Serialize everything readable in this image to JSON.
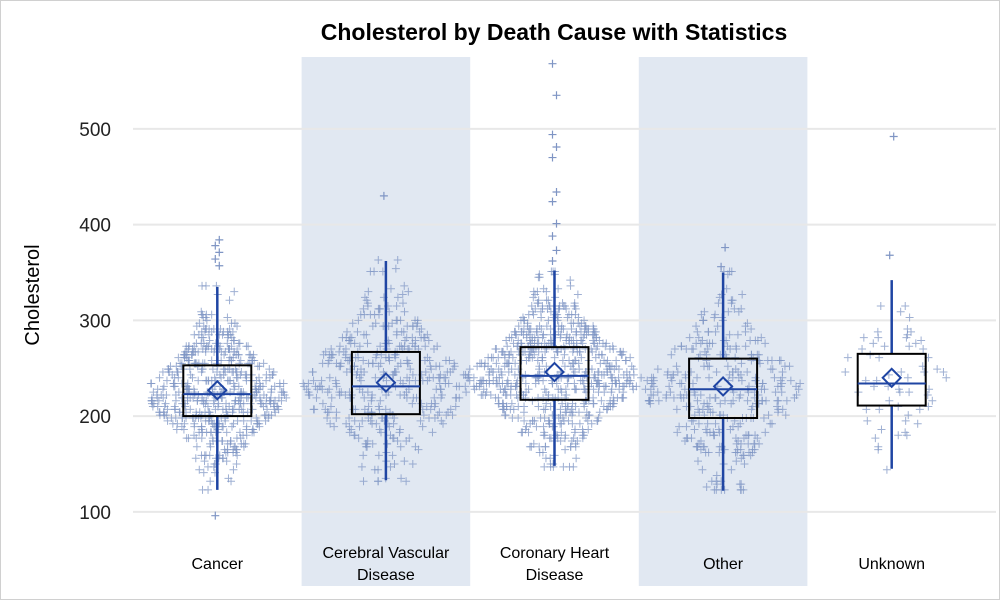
{
  "chart_data": {
    "type": "box",
    "title": "Cholesterol by Death Cause with Statistics",
    "ylabel": "Cholesterol",
    "xlabel": "",
    "ylim": [
      80,
      575
    ],
    "yticks": [
      100,
      200,
      300,
      400,
      500
    ],
    "grid": true,
    "colors": {
      "points": "#7f95c4",
      "whisker": "#1f45a3",
      "box_outline": "#000000",
      "mean_marker": "#1f45a3",
      "band": "#e1e8f2",
      "grid": "#e8e8e8"
    },
    "categories": [
      {
        "lines": [
          "Cancer"
        ],
        "stats": {
          "min": 123,
          "q1": 200,
          "median": 223,
          "q3": 253,
          "max": 335,
          "mean": 227
        },
        "outliers": [
          96,
          357,
          364,
          371,
          378,
          384
        ],
        "n_points": 540,
        "spread_max": 250,
        "shaded": false
      },
      {
        "lines": [
          "Cerebral Vascular",
          "Disease"
        ],
        "stats": {
          "min": 133,
          "q1": 202,
          "median": 231,
          "q3": 267,
          "max": 362,
          "mean": 235
        },
        "outliers": [
          430
        ],
        "n_points": 380,
        "spread_max": 300,
        "shaded": true
      },
      {
        "lines": [
          "Coronary Heart",
          "Disease"
        ],
        "stats": {
          "min": 148,
          "q1": 217,
          "median": 242,
          "q3": 272,
          "max": 352,
          "mean": 246
        },
        "outliers": [
          362,
          373,
          388,
          401,
          424,
          434,
          470,
          481,
          494,
          535,
          568
        ],
        "n_points": 640,
        "spread_max": 310,
        "shaded": false
      },
      {
        "lines": [
          "Other"
        ],
        "stats": {
          "min": 122,
          "q1": 198,
          "median": 228,
          "q3": 260,
          "max": 350,
          "mean": 231
        },
        "outliers": [
          356,
          376
        ],
        "n_points": 330,
        "spread_max": 280,
        "shaded": true
      },
      {
        "lines": [
          "Unknown"
        ],
        "stats": {
          "min": 145,
          "q1": 211,
          "median": 234,
          "q3": 265,
          "max": 342,
          "mean": 240
        },
        "outliers": [
          368,
          492
        ],
        "n_points": 60,
        "spread_max": 210,
        "shaded": false
      }
    ]
  }
}
